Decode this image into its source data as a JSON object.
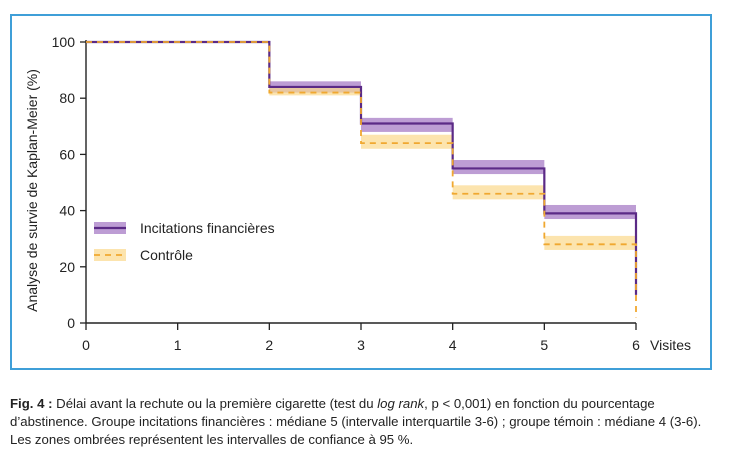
{
  "chart_data": {
    "type": "line",
    "subtype": "kaplan-meier step",
    "xlabel": "Visites",
    "ylabel": "Analyse de survie de Kaplan-Meier (%)",
    "xlim": [
      0,
      6
    ],
    "ylim": [
      0,
      100
    ],
    "x_ticks": [
      "0",
      "1",
      "2",
      "3",
      "4",
      "5",
      "6"
    ],
    "y_ticks": [
      "0",
      "20",
      "40",
      "60",
      "80",
      "100"
    ],
    "grid": false,
    "legend_position": "lower-left",
    "series": [
      {
        "name": "Incitations financières",
        "color": "#5b2a86",
        "band_color": "#a77cc6",
        "style": "solid",
        "steps": [
          {
            "x0": 0,
            "x1": 2,
            "y": 100,
            "lo": 100,
            "hi": 100
          },
          {
            "x0": 2,
            "x1": 3,
            "y": 84,
            "lo": 82,
            "hi": 86
          },
          {
            "x0": 3,
            "x1": 4,
            "y": 71,
            "lo": 68,
            "hi": 73
          },
          {
            "x0": 4,
            "x1": 5,
            "y": 55,
            "lo": 53,
            "hi": 58
          },
          {
            "x0": 5,
            "x1": 6,
            "y": 39,
            "lo": 37,
            "hi": 42
          }
        ],
        "end_y": 10
      },
      {
        "name": "Contrôle",
        "color": "#f0a830",
        "band_color": "#fbd98c",
        "style": "dashed",
        "steps": [
          {
            "x0": 0,
            "x1": 2,
            "y": 100,
            "lo": 100,
            "hi": 100
          },
          {
            "x0": 2,
            "x1": 3,
            "y": 82,
            "lo": 81,
            "hi": 84
          },
          {
            "x0": 3,
            "x1": 4,
            "y": 64,
            "lo": 62,
            "hi": 67
          },
          {
            "x0": 4,
            "x1": 5,
            "y": 46,
            "lo": 44,
            "hi": 49
          },
          {
            "x0": 5,
            "x1": 6,
            "y": 28,
            "lo": 26,
            "hi": 31
          }
        ],
        "end_y": 2
      }
    ]
  },
  "caption": {
    "label": "Fig. 4 :",
    "text_before": " Délai avant la rechute ou la première cigarette (test du ",
    "italic": "log rank",
    "text_after": ", p < 0,001) en fonction du pourcentage d’abstinence. Groupe incitations financières : médiane 5 (intervalle interquartile 3-6) ; groupe témoin : médiane 4 (3-6). Les zones ombrées représentent les intervalles de confiance à 95 %."
  }
}
